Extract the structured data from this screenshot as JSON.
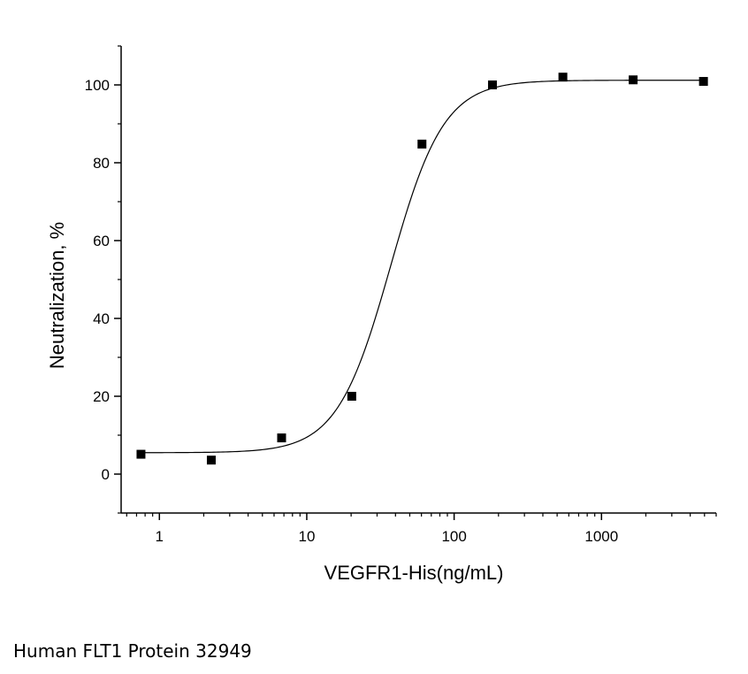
{
  "chart_data": {
    "type": "scatter",
    "title": "",
    "xlabel": "VEGFR1-His(ng/mL)",
    "ylabel": "Neutralization, %",
    "x_scale": "log",
    "xlim": [
      0.55,
      6000
    ],
    "ylim": [
      -10,
      110
    ],
    "x_ticks": [
      1,
      10,
      100,
      1000
    ],
    "x_tick_labels": [
      "1",
      "10",
      "100",
      "1000"
    ],
    "y_ticks": [
      0,
      20,
      40,
      60,
      80,
      100
    ],
    "y_tick_labels": [
      "0",
      "20",
      "40",
      "60",
      "80",
      "100"
    ],
    "grid": false,
    "legend": "none",
    "series": [
      {
        "marker": "square",
        "color": "#000000",
        "x": [
          0.75,
          2.25,
          6.75,
          20.2,
          60.5,
          182,
          547,
          1640,
          4920
        ],
        "y": [
          5.1,
          3.6,
          9.3,
          20.0,
          84.8,
          100.0,
          102.0,
          101.3,
          100.9
        ]
      }
    ],
    "fit_curve": {
      "model": "4PL",
      "bottom": 5.5,
      "top": 101.2,
      "ec50": 37,
      "hill": 2.4,
      "color": "#000000"
    }
  },
  "caption": "Human FLT1 Protein 32949"
}
